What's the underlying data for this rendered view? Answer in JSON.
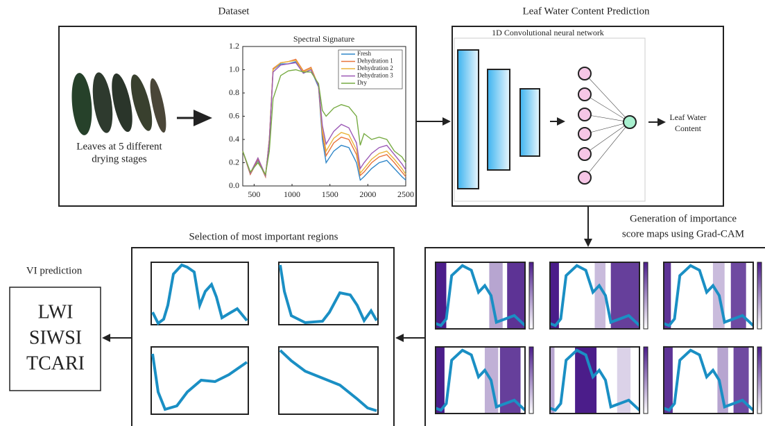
{
  "diagram": {
    "dataset_title": "Dataset",
    "prediction_title": "Leaf Water Content Prediction",
    "leaves_caption": [
      "Leaves at 5 different",
      "drying stages"
    ],
    "network_label": "1D Convolutional neural network",
    "output_label": [
      "Leaf Water",
      "Content"
    ],
    "gradcam_title": [
      "Generation of importance",
      "score maps using Grad-CAM"
    ],
    "selection_title": "Selection of most important regions",
    "vi_title": "VI prediction",
    "vi_indices": [
      "LWI",
      "SIWSI",
      "TCARI"
    ]
  },
  "chart_data": {
    "type": "line",
    "title": "Spectral Signature",
    "x": [
      350,
      450,
      550,
      650,
      700,
      750,
      850,
      950,
      1050,
      1150,
      1250,
      1350,
      1400,
      1450,
      1550,
      1650,
      1750,
      1850,
      1900,
      1950,
      2050,
      2150,
      2250,
      2350,
      2450,
      2500
    ],
    "series": [
      {
        "name": "Fresh",
        "color": "#2f86c8",
        "values": [
          0.3,
          0.1,
          0.22,
          0.08,
          0.4,
          1.0,
          1.05,
          1.05,
          1.07,
          0.97,
          1.0,
          0.85,
          0.4,
          0.2,
          0.3,
          0.35,
          0.33,
          0.2,
          0.05,
          0.08,
          0.15,
          0.2,
          0.22,
          0.15,
          0.08,
          0.05
        ]
      },
      {
        "name": "Dehydration 1",
        "color": "#e8743b",
        "values": [
          0.3,
          0.1,
          0.23,
          0.08,
          0.4,
          1.01,
          1.06,
          1.07,
          1.09,
          0.99,
          1.02,
          0.86,
          0.45,
          0.26,
          0.37,
          0.42,
          0.4,
          0.27,
          0.09,
          0.12,
          0.2,
          0.25,
          0.27,
          0.2,
          0.12,
          0.08
        ]
      },
      {
        "name": "Dehydration 2",
        "color": "#eab33a",
        "values": [
          0.3,
          0.11,
          0.24,
          0.09,
          0.39,
          1.0,
          1.06,
          1.07,
          1.08,
          0.98,
          1.01,
          0.86,
          0.48,
          0.3,
          0.41,
          0.46,
          0.44,
          0.31,
          0.11,
          0.15,
          0.23,
          0.28,
          0.3,
          0.23,
          0.15,
          0.1
        ]
      },
      {
        "name": "Dehydration 3",
        "color": "#9b59b6",
        "values": [
          0.3,
          0.11,
          0.24,
          0.09,
          0.38,
          0.98,
          1.04,
          1.05,
          1.06,
          0.97,
          1.0,
          0.86,
          0.52,
          0.36,
          0.47,
          0.53,
          0.5,
          0.37,
          0.15,
          0.2,
          0.28,
          0.33,
          0.35,
          0.27,
          0.19,
          0.14
        ]
      },
      {
        "name": "Dry",
        "color": "#77ab43",
        "values": [
          0.3,
          0.12,
          0.2,
          0.1,
          0.3,
          0.75,
          0.95,
          0.99,
          1.0,
          0.98,
          0.98,
          0.88,
          0.65,
          0.6,
          0.67,
          0.7,
          0.68,
          0.6,
          0.35,
          0.45,
          0.4,
          0.42,
          0.4,
          0.3,
          0.25,
          0.2
        ]
      }
    ],
    "xlim": [
      350,
      2500
    ],
    "ylim": [
      0,
      1.2
    ],
    "xticks": [
      500,
      1000,
      1500,
      2000,
      2500
    ],
    "yticks": [
      {
        "value": 0,
        "label": "0.0"
      },
      0.2,
      0.4,
      0.6,
      0.8,
      {
        "value": 1,
        "label": "1.0"
      },
      1.2
    ]
  }
}
